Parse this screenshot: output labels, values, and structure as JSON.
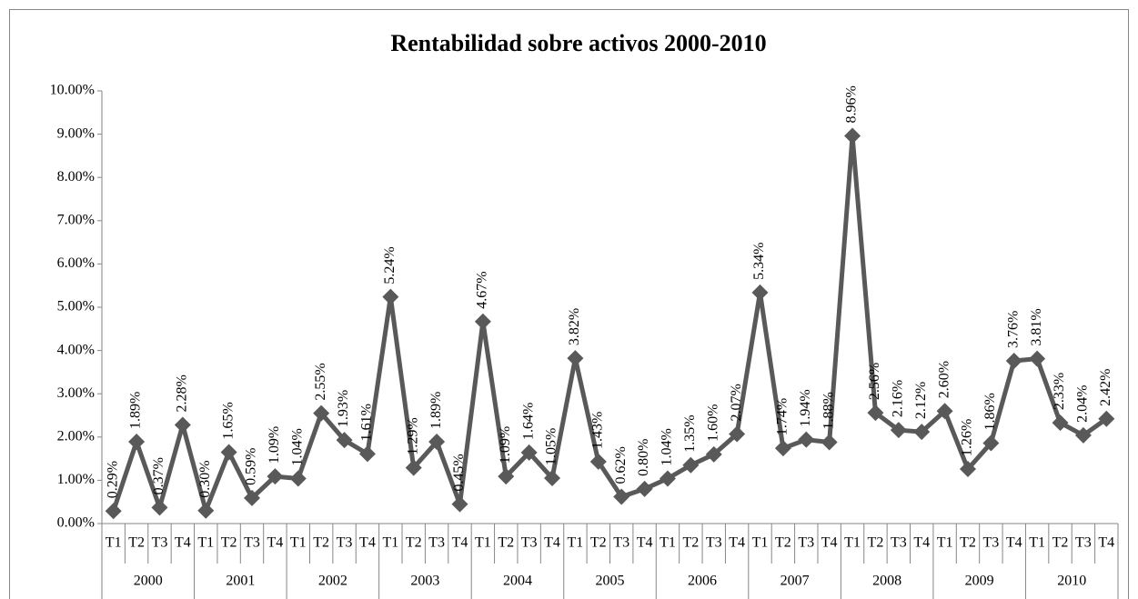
{
  "chart_data": {
    "type": "line",
    "title": "Rentabilidad sobre activos 2000-2010",
    "categories": [
      "T1",
      "T2",
      "T3",
      "T4",
      "T1",
      "T2",
      "T3",
      "T4",
      "T1",
      "T2",
      "T3",
      "T4",
      "T1",
      "T2",
      "T3",
      "T4",
      "T1",
      "T2",
      "T3",
      "T4",
      "T1",
      "T2",
      "T3",
      "T4",
      "T1",
      "T2",
      "T3",
      "T4",
      "T1",
      "T2",
      "T3",
      "T4",
      "T1",
      "T2",
      "T3",
      "T4",
      "T1",
      "T2",
      "T3",
      "T4",
      "T1",
      "T2",
      "T3",
      "T4"
    ],
    "category_groups": [
      "2000",
      "2001",
      "2002",
      "2003",
      "2004",
      "2005",
      "2006",
      "2007",
      "2008",
      "2009",
      "2010"
    ],
    "series": [
      {
        "color": "#595959",
        "values": [
          0.29,
          1.89,
          0.37,
          2.28,
          0.3,
          1.65,
          0.59,
          1.09,
          1.04,
          2.55,
          1.93,
          1.61,
          5.24,
          1.29,
          1.89,
          0.45,
          4.67,
          1.09,
          1.64,
          1.05,
          3.82,
          1.43,
          0.62,
          0.8,
          1.04,
          1.35,
          1.6,
          2.07,
          5.34,
          1.74,
          1.94,
          1.88,
          8.96,
          2.56,
          2.16,
          2.12,
          2.6,
          1.26,
          1.86,
          3.76,
          3.81,
          2.33,
          2.04,
          2.42
        ],
        "value_labels": [
          "0.29%",
          "1.89%",
          "0.37%",
          "2.28%",
          "0.30%",
          "1.65%",
          "0.59%",
          "1.09%",
          "1.04%",
          "2.55%",
          "1.93%",
          "1.61%",
          "5.24%",
          "1.29%",
          "1.89%",
          "0.45%",
          "4.67%",
          "1.09%",
          "1.64%",
          "1.05%",
          "3.82%",
          "1.43%",
          "0.62%",
          "0.80%",
          "1.04%",
          "1.35%",
          "1.60%",
          "2.07%",
          "5.34%",
          "1.74%",
          "1.94%",
          "1.88%",
          "8.96%",
          "2.56%",
          "2.16%",
          "2.12%",
          "2.60%",
          "1.26%",
          "1.86%",
          "3.76%",
          "3.81%",
          "2.33%",
          "2.04%",
          "2.42%"
        ]
      }
    ],
    "ylim": [
      0,
      10
    ],
    "yticks": [
      {
        "value": 0,
        "label": "0.00%"
      },
      {
        "value": 1,
        "label": "1.00%"
      },
      {
        "value": 2,
        "label": "2.00%"
      },
      {
        "value": 3,
        "label": "3.00%"
      },
      {
        "value": 4,
        "label": "4.00%"
      },
      {
        "value": 5,
        "label": "5.00%"
      },
      {
        "value": 6,
        "label": "6.00%"
      },
      {
        "value": 7,
        "label": "7.00%"
      },
      {
        "value": 8,
        "label": "8.00%"
      },
      {
        "value": 9,
        "label": "9.00%"
      },
      {
        "value": 10,
        "label": "10.00%"
      }
    ],
    "grid": false
  }
}
